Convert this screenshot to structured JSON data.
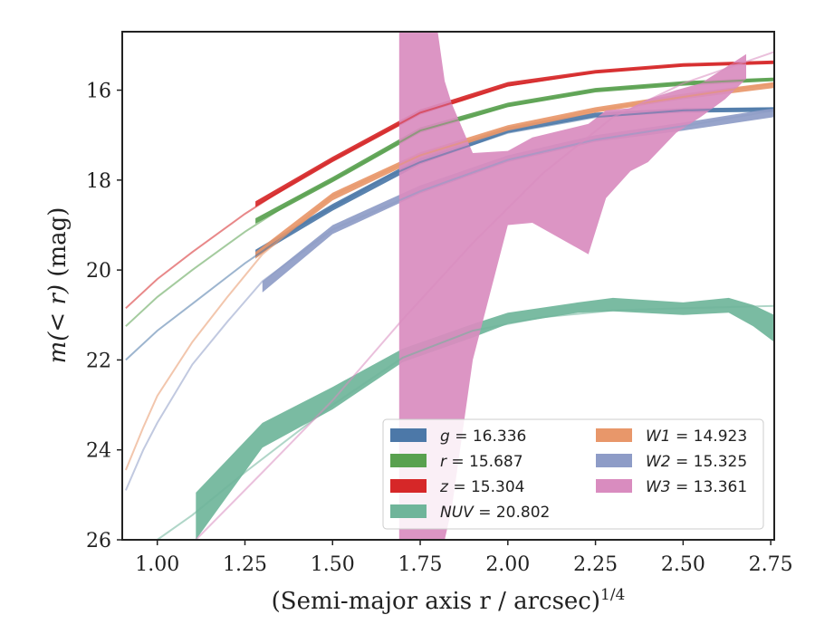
{
  "chart_data": {
    "type": "line",
    "xlabel": "(Semi-major axis r / arcsec)",
    "xlabel_sup": "1/4",
    "ylabel_prefix": "m(< r)",
    "ylabel_suffix": " (mag)",
    "xlim": [
      0.9,
      2.76
    ],
    "ylim": [
      26,
      14.7
    ],
    "y_inverted": true,
    "xticks": [
      {
        "v": 1.0,
        "label": "1.00"
      },
      {
        "v": 1.25,
        "label": "1.25"
      },
      {
        "v": 1.5,
        "label": "1.50"
      },
      {
        "v": 1.75,
        "label": "1.75"
      },
      {
        "v": 2.0,
        "label": "2.00"
      },
      {
        "v": 2.25,
        "label": "2.25"
      },
      {
        "v": 2.5,
        "label": "2.50"
      },
      {
        "v": 2.75,
        "label": "2.75"
      }
    ],
    "yticks": [
      {
        "v": 16,
        "label": "16"
      },
      {
        "v": 18,
        "label": "18"
      },
      {
        "v": 20,
        "label": "20"
      },
      {
        "v": 22,
        "label": "22"
      },
      {
        "v": 24,
        "label": "24"
      },
      {
        "v": 26,
        "label": "26"
      }
    ],
    "legend_position": "lower-right",
    "series": [
      {
        "name": "g",
        "mag": "16.336",
        "color": "#4c78a8",
        "model": [
          [
            0.91,
            22.0
          ],
          [
            1.0,
            21.35
          ],
          [
            1.1,
            20.75
          ],
          [
            1.25,
            19.85
          ],
          [
            1.4,
            19.05
          ],
          [
            1.5,
            18.6
          ],
          [
            1.65,
            17.95
          ],
          [
            1.75,
            17.6
          ],
          [
            2.0,
            16.95
          ],
          [
            2.25,
            16.6
          ],
          [
            2.5,
            16.45
          ],
          [
            2.76,
            16.4
          ]
        ],
        "band": [
          [
            1.28,
            19.7,
            19.55
          ],
          [
            1.5,
            18.68,
            18.53
          ],
          [
            1.75,
            17.65,
            17.5
          ],
          [
            2.0,
            16.95,
            16.82
          ],
          [
            2.25,
            16.6,
            16.5
          ],
          [
            2.5,
            16.5,
            16.4
          ],
          [
            2.76,
            16.48,
            16.38
          ]
        ]
      },
      {
        "name": "r",
        "mag": "15.687",
        "color": "#59a14f",
        "model": [
          [
            0.91,
            21.25
          ],
          [
            1.0,
            20.6
          ],
          [
            1.1,
            20.0
          ],
          [
            1.25,
            19.15
          ],
          [
            1.4,
            18.4
          ],
          [
            1.5,
            18.0
          ],
          [
            1.75,
            16.9
          ],
          [
            2.0,
            16.35
          ],
          [
            2.25,
            16.0
          ],
          [
            2.5,
            15.85
          ],
          [
            2.76,
            15.75
          ]
        ],
        "band": [
          [
            1.28,
            18.97,
            18.85
          ],
          [
            1.5,
            18.05,
            17.93
          ],
          [
            1.75,
            16.95,
            16.83
          ],
          [
            2.0,
            16.38,
            16.28
          ],
          [
            2.25,
            16.05,
            15.95
          ],
          [
            2.5,
            15.9,
            15.8
          ],
          [
            2.76,
            15.8,
            15.72
          ]
        ]
      },
      {
        "name": "z",
        "mag": "15.304",
        "color": "#d62728",
        "model": [
          [
            0.91,
            20.85
          ],
          [
            1.0,
            20.2
          ],
          [
            1.1,
            19.6
          ],
          [
            1.25,
            18.75
          ],
          [
            1.4,
            18.0
          ],
          [
            1.5,
            17.55
          ],
          [
            1.75,
            16.5
          ],
          [
            2.0,
            15.9
          ],
          [
            2.25,
            15.6
          ],
          [
            2.5,
            15.45
          ],
          [
            2.76,
            15.38
          ]
        ],
        "band": [
          [
            1.28,
            18.6,
            18.47
          ],
          [
            1.5,
            17.6,
            17.48
          ],
          [
            1.75,
            16.55,
            16.43
          ],
          [
            2.0,
            15.92,
            15.82
          ],
          [
            2.25,
            15.63,
            15.55
          ],
          [
            2.5,
            15.48,
            15.4
          ],
          [
            2.76,
            15.42,
            15.34
          ]
        ]
      },
      {
        "name": "NUV",
        "mag": "20.802",
        "color": "#6fb59a",
        "model": [
          [
            1.0,
            26.0
          ],
          [
            1.1,
            25.45
          ],
          [
            1.25,
            24.5
          ],
          [
            1.5,
            23.0
          ],
          [
            1.7,
            21.95
          ],
          [
            1.9,
            21.35
          ],
          [
            2.1,
            21.05
          ],
          [
            2.3,
            20.9
          ],
          [
            2.5,
            20.85
          ],
          [
            2.76,
            20.8
          ]
        ],
        "band": [
          [
            1.11,
            26.0,
            24.95
          ],
          [
            1.3,
            23.95,
            23.4
          ],
          [
            1.5,
            23.1,
            22.6
          ],
          [
            1.7,
            22.05,
            21.75
          ],
          [
            1.9,
            21.5,
            21.2
          ],
          [
            2.0,
            21.2,
            20.95
          ],
          [
            2.2,
            20.95,
            20.72
          ],
          [
            2.3,
            20.92,
            20.62
          ],
          [
            2.5,
            21.0,
            20.72
          ],
          [
            2.63,
            20.95,
            20.62
          ],
          [
            2.7,
            21.25,
            20.78
          ],
          [
            2.76,
            21.6,
            21.0
          ]
        ]
      },
      {
        "name": "W1",
        "mag": "14.923",
        "color": "#e8976a",
        "model": [
          [
            0.91,
            24.45
          ],
          [
            0.96,
            23.5
          ],
          [
            1.0,
            22.8
          ],
          [
            1.1,
            21.6
          ],
          [
            1.2,
            20.6
          ],
          [
            1.3,
            19.65
          ],
          [
            1.5,
            18.35
          ],
          [
            1.75,
            17.45
          ],
          [
            2.0,
            16.85
          ],
          [
            2.25,
            16.45
          ],
          [
            2.5,
            16.15
          ],
          [
            2.76,
            15.85
          ]
        ],
        "band": [
          [
            1.28,
            19.75,
            19.6
          ],
          [
            1.5,
            18.45,
            18.28
          ],
          [
            1.75,
            17.52,
            17.38
          ],
          [
            2.0,
            16.9,
            16.78
          ],
          [
            2.25,
            16.5,
            16.38
          ],
          [
            2.5,
            16.2,
            16.08
          ],
          [
            2.76,
            15.95,
            15.82
          ]
        ]
      },
      {
        "name": "W2",
        "mag": "15.325",
        "color": "#8e9cc7",
        "model": [
          [
            0.91,
            24.9
          ],
          [
            0.96,
            24.0
          ],
          [
            1.0,
            23.4
          ],
          [
            1.1,
            22.1
          ],
          [
            1.2,
            21.15
          ],
          [
            1.3,
            20.25
          ],
          [
            1.5,
            19.1
          ],
          [
            1.75,
            18.25
          ],
          [
            2.0,
            17.55
          ],
          [
            2.25,
            17.1
          ],
          [
            2.5,
            16.8
          ],
          [
            2.76,
            16.45
          ]
        ],
        "band": [
          [
            1.3,
            20.5,
            20.25
          ],
          [
            1.5,
            19.2,
            19.0
          ],
          [
            1.75,
            18.3,
            18.12
          ],
          [
            2.0,
            17.6,
            17.45
          ],
          [
            2.25,
            17.15,
            17.0
          ],
          [
            2.5,
            16.9,
            16.72
          ],
          [
            2.76,
            16.6,
            16.4
          ]
        ]
      },
      {
        "name": "W3",
        "mag": "13.361",
        "color": "#d98cbf",
        "model": [
          [
            1.11,
            26.0
          ],
          [
            1.3,
            24.5
          ],
          [
            1.5,
            22.9
          ],
          [
            1.7,
            21.1
          ],
          [
            1.9,
            19.4
          ],
          [
            2.1,
            17.85
          ],
          [
            2.3,
            16.6
          ],
          [
            2.5,
            15.85
          ],
          [
            2.76,
            15.15
          ]
        ],
        "band": [
          [
            1.69,
            26.0,
            14.7
          ],
          [
            1.8,
            26.0,
            14.7
          ],
          [
            1.82,
            26.0,
            15.8
          ],
          [
            1.84,
            25.3,
            16.3
          ],
          [
            1.9,
            22.0,
            17.4
          ],
          [
            2.0,
            19.0,
            17.35
          ],
          [
            2.07,
            18.95,
            17.05
          ],
          [
            2.23,
            19.65,
            16.75
          ],
          [
            2.28,
            18.4,
            16.45
          ],
          [
            2.35,
            17.8,
            16.4
          ],
          [
            2.4,
            17.6,
            16.2
          ],
          [
            2.48,
            16.95,
            16.0
          ],
          [
            2.55,
            16.6,
            15.85
          ],
          [
            2.62,
            16.2,
            15.5
          ],
          [
            2.68,
            15.75,
            15.2
          ]
        ]
      }
    ]
  }
}
